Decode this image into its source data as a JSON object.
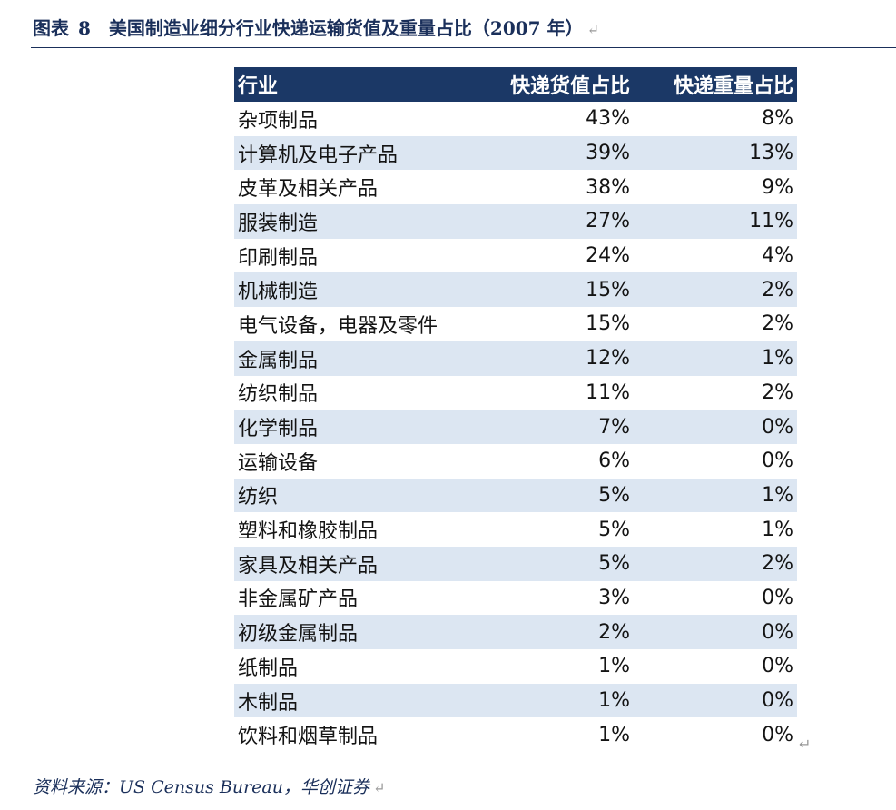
{
  "header": {
    "figure_label": "图表",
    "figure_number": "8",
    "title": "美国制造业细分行业快递运输货值及重量占比（2007 年）",
    "return_mark": "↵"
  },
  "table": {
    "columns": [
      "行业",
      "快递货值占比",
      "快递重量占比"
    ],
    "rows": [
      {
        "industry": "杂项制品",
        "value_share": "43%",
        "weight_share": "8%"
      },
      {
        "industry": "计算机及电子产品",
        "value_share": "39%",
        "weight_share": "13%"
      },
      {
        "industry": "皮革及相关产品",
        "value_share": "38%",
        "weight_share": "9%"
      },
      {
        "industry": "服装制造",
        "value_share": "27%",
        "weight_share": "11%"
      },
      {
        "industry": "印刷制品",
        "value_share": "24%",
        "weight_share": "4%"
      },
      {
        "industry": "机械制造",
        "value_share": "15%",
        "weight_share": "2%"
      },
      {
        "industry": "电气设备，电器及零件",
        "value_share": "15%",
        "weight_share": "2%"
      },
      {
        "industry": "金属制品",
        "value_share": "12%",
        "weight_share": "1%"
      },
      {
        "industry": "纺织制品",
        "value_share": "11%",
        "weight_share": "2%"
      },
      {
        "industry": "化学制品",
        "value_share": "7%",
        "weight_share": "0%"
      },
      {
        "industry": "运输设备",
        "value_share": "6%",
        "weight_share": "0%"
      },
      {
        "industry": "纺织",
        "value_share": "5%",
        "weight_share": "1%"
      },
      {
        "industry": "塑料和橡胶制品",
        "value_share": "5%",
        "weight_share": "1%"
      },
      {
        "industry": "家具及相关产品",
        "value_share": "5%",
        "weight_share": "2%"
      },
      {
        "industry": "非金属矿产品",
        "value_share": "3%",
        "weight_share": "0%"
      },
      {
        "industry": "初级金属制品",
        "value_share": "2%",
        "weight_share": "0%"
      },
      {
        "industry": "纸制品",
        "value_share": "1%",
        "weight_share": "0%"
      },
      {
        "industry": "木制品",
        "value_share": "1%",
        "weight_share": "0%"
      },
      {
        "industry": "饮料和烟草制品",
        "value_share": "1%",
        "weight_share": "0%"
      }
    ],
    "row_end_mark": "↵"
  },
  "footer": {
    "source": "资料来源：US Census Bureau，华创证券",
    "return_mark": "↵"
  },
  "colors": {
    "title": "#1a2f5a",
    "header_bg": "#1b3866",
    "alt_row_bg": "#dce6f2",
    "rule": "#1a2f5a"
  }
}
